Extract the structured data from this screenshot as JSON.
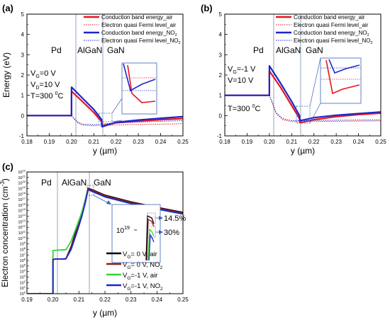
{
  "chart_data": [
    {
      "type": "line",
      "panel_label": "(a)",
      "ylabel": "Energy (eV)",
      "xlabel": "y (µm)",
      "xlim": [
        0.18,
        0.25
      ],
      "ylim": [
        -1,
        5
      ],
      "xticks": [
        0.18,
        0.19,
        0.2,
        0.21,
        0.22,
        0.23,
        0.24,
        0.25
      ],
      "xtick_labels": [
        "0.18",
        "0.19",
        "0.20",
        "0.21",
        "0.22",
        "0.23",
        "0.24",
        "0.25"
      ],
      "yticks": [
        -1,
        0,
        1,
        2,
        3,
        4,
        5
      ],
      "ytick_labels": [
        "-1",
        "0",
        "1",
        "2",
        "3",
        "4",
        "5"
      ],
      "region_labels": [
        "Pd",
        "AlGaN",
        "GaN"
      ],
      "conditions": [
        "V",
        "G",
        "=0 V",
        "V",
        "D",
        "=10 V",
        "T=300 ",
        "0",
        "C"
      ],
      "legend": [
        "Conduction band energy_air",
        "Electron quasi Fermi level_air",
        "Conduction band energy_NO",
        "2",
        "Electron quasi Fermi level_NO",
        "2"
      ],
      "series": [
        {
          "name": "Conduction band energy_air",
          "color": "#e8141e",
          "style": "solid",
          "x": [
            0.18,
            0.2,
            0.2,
            0.205,
            0.21,
            0.2135,
            0.2137,
            0.216,
            0.22,
            0.23,
            0.24,
            0.25
          ],
          "y": [
            0,
            0,
            1.2,
            0.68,
            0.15,
            -0.3,
            -0.5,
            -0.45,
            -0.35,
            -0.27,
            -0.2,
            -0.15
          ]
        },
        {
          "name": "Electron quasi Fermi level_air",
          "color": "#e8141e",
          "style": "dotted",
          "x": [
            0.18,
            0.2,
            0.201,
            0.203,
            0.205,
            0.21,
            0.215,
            0.22,
            0.23,
            0.24,
            0.25
          ],
          "y": [
            0,
            0,
            -0.15,
            -0.38,
            -0.47,
            -0.5,
            -0.48,
            -0.46,
            -0.44,
            -0.42,
            -0.4
          ]
        },
        {
          "name": "Conduction band energy_NO2",
          "color": "#1c27c8",
          "style": "solid",
          "x": [
            0.18,
            0.2,
            0.2,
            0.205,
            0.21,
            0.2135,
            0.2137,
            0.216,
            0.22,
            0.23,
            0.24,
            0.25
          ],
          "y": [
            0,
            0,
            1.4,
            0.85,
            0.3,
            -0.2,
            -0.55,
            -0.47,
            -0.33,
            -0.22,
            -0.13,
            -0.05
          ]
        },
        {
          "name": "Electron quasi Fermi level_NO2",
          "color": "#1c27c8",
          "style": "dotted",
          "x": [
            0.18,
            0.2,
            0.201,
            0.203,
            0.205,
            0.21,
            0.215,
            0.22,
            0.23,
            0.24,
            0.25
          ],
          "y": [
            0,
            0,
            -0.12,
            -0.33,
            -0.42,
            -0.45,
            -0.4,
            -0.36,
            -0.32,
            -0.28,
            -0.25
          ]
        }
      ]
    },
    {
      "type": "line",
      "panel_label": "(b)",
      "ylabel": "",
      "xlabel": "y (µm)",
      "xlim": [
        0.18,
        0.25
      ],
      "ylim": [
        -1,
        5
      ],
      "xticks": [
        0.18,
        0.19,
        0.2,
        0.21,
        0.22,
        0.23,
        0.24,
        0.25
      ],
      "xtick_labels": [
        "0.18",
        "0.19",
        "0.20",
        "0.21",
        "0.22",
        "0.23",
        "0.24",
        "0.25"
      ],
      "yticks": [
        -1,
        0,
        1,
        2,
        3,
        4,
        5
      ],
      "ytick_labels": [
        "-1",
        "0",
        "1",
        "2",
        "3",
        "4",
        "5"
      ],
      "region_labels": [
        "Pd",
        "AlGaN",
        "GaN"
      ],
      "conditions": [
        "V",
        "G",
        "=-1 V",
        "V=10 V",
        "T=300 ",
        "0",
        "C"
      ],
      "legend": [
        "Conduction band energy_air",
        "Electron quasi Fermi level_air",
        "Conduction band energy_NO",
        "2",
        "Electron quasi Fermi level_NO",
        "2"
      ],
      "series": [
        {
          "name": "Conduction band energy_air",
          "color": "#e8141e",
          "style": "solid",
          "x": [
            0.18,
            0.2,
            0.2,
            0.205,
            0.21,
            0.2135,
            0.2137,
            0.216,
            0.22,
            0.23,
            0.24,
            0.25
          ],
          "y": [
            1,
            1,
            2.2,
            1.4,
            0.5,
            -0.15,
            -0.35,
            -0.3,
            -0.2,
            -0.05,
            0.05,
            0.12
          ]
        },
        {
          "name": "Electron quasi Fermi level_air",
          "color": "#e8141e",
          "style": "dotted",
          "x": [
            0.18,
            0.2,
            0.201,
            0.203,
            0.206,
            0.21,
            0.215,
            0.22,
            0.23,
            0.24,
            0.25
          ],
          "y": [
            1,
            1,
            0.7,
            0.1,
            -0.2,
            -0.3,
            -0.3,
            -0.29,
            -0.28,
            -0.27,
            -0.26
          ]
        },
        {
          "name": "Conduction band energy_NO2",
          "color": "#1c27c8",
          "style": "solid",
          "x": [
            0.18,
            0.2,
            0.2,
            0.205,
            0.21,
            0.2135,
            0.2137,
            0.216,
            0.22,
            0.23,
            0.24,
            0.25
          ],
          "y": [
            1,
            1,
            2.45,
            1.6,
            0.7,
            0.0,
            -0.25,
            -0.2,
            -0.1,
            0.02,
            0.1,
            0.18
          ]
        },
        {
          "name": "Electron quasi Fermi level_NO2",
          "color": "#1c27c8",
          "style": "dotted",
          "x": [
            0.18,
            0.2,
            0.201,
            0.203,
            0.206,
            0.21,
            0.215,
            0.22,
            0.23,
            0.24,
            0.25
          ],
          "y": [
            1,
            1,
            0.75,
            0.15,
            -0.15,
            -0.25,
            -0.25,
            -0.24,
            -0.23,
            -0.22,
            -0.21
          ]
        }
      ]
    },
    {
      "type": "line",
      "panel_label": "(c)",
      "ylabel": "Electron concentration (cm",
      "ylabel_sup": "-3",
      "ylabel_end": ")",
      "xlabel": "y (µm)",
      "xlim": [
        0.19,
        0.25
      ],
      "ylim": [
        0,
        22
      ],
      "yscale": "log",
      "xticks": [
        0.19,
        0.2,
        0.21,
        0.22,
        0.23,
        0.24,
        0.25
      ],
      "xtick_labels": [
        "0.19",
        "0.20",
        "0.21",
        "0.22",
        "0.23",
        "0.24",
        "0.25"
      ],
      "ytick_base": "10",
      "ytick_exponents": [
        "0",
        "1",
        "2",
        "3",
        "4",
        "5",
        "6",
        "7",
        "8",
        "9",
        "10",
        "11",
        "12",
        "13",
        "14",
        "15",
        "16",
        "17",
        "18",
        "19",
        "20",
        "21",
        "22"
      ],
      "region_labels": [
        "Pd",
        "AlGaN",
        "GaN"
      ],
      "inset_tick_base": "10",
      "inset_tick_exp": "19",
      "annotations": [
        "14.5%",
        "30%"
      ],
      "legend_prefix": [
        "V",
        "G"
      ],
      "legend_suffix": [
        "= 0 V, air",
        "= 0 V, NO",
        "=-1 V, air",
        "=-1 V, NO"
      ],
      "legend_sub": [
        "",
        "2",
        "",
        "2"
      ],
      "series": [
        {
          "name": "VG= 0 V, air",
          "color": "#000000",
          "x": [
            0.19,
            0.2,
            0.2,
            0.201,
            0.203,
            0.205,
            0.207,
            0.209,
            0.211,
            0.2125,
            0.2135,
            0.215,
            0.22,
            0.23,
            0.24,
            0.25
          ],
          "y": [
            0,
            0,
            6.2,
            6.25,
            6.25,
            6.3,
            8.5,
            11.5,
            14.5,
            17.0,
            19.05,
            18.8,
            17.8,
            16.6,
            15.6,
            14.7
          ]
        },
        {
          "name": "VG= 0 V, NO2",
          "color": "#8b1a1a",
          "x": [
            0.19,
            0.2,
            0.2,
            0.201,
            0.203,
            0.205,
            0.207,
            0.209,
            0.211,
            0.2125,
            0.2135,
            0.215,
            0.22,
            0.23,
            0.24,
            0.25
          ],
          "y": [
            0,
            0,
            6.2,
            6.25,
            6.25,
            6.3,
            8.3,
            11.2,
            14.2,
            16.8,
            18.95,
            18.7,
            17.7,
            16.5,
            15.5,
            14.6
          ]
        },
        {
          "name": "VG=-1 V, air",
          "color": "#35d435",
          "x": [
            0.19,
            0.2,
            0.2,
            0.201,
            0.203,
            0.205,
            0.207,
            0.209,
            0.211,
            0.2125,
            0.2135,
            0.215,
            0.22,
            0.23,
            0.24,
            0.25
          ],
          "y": [
            0,
            0,
            7.8,
            7.85,
            7.9,
            7.95,
            9.5,
            12.0,
            14.6,
            16.8,
            18.8,
            18.5,
            17.5,
            16.3,
            15.3,
            14.4
          ]
        },
        {
          "name": "VG=-1 V, NO2",
          "color": "#1c27c8",
          "x": [
            0.19,
            0.2,
            0.2,
            0.201,
            0.203,
            0.205,
            0.207,
            0.209,
            0.211,
            0.2125,
            0.2135,
            0.215,
            0.22,
            0.23,
            0.24,
            0.25
          ],
          "y": [
            0,
            0,
            6.2,
            6.25,
            6.25,
            6.3,
            8.0,
            10.8,
            13.8,
            16.5,
            18.8,
            18.5,
            17.5,
            16.3,
            15.3,
            14.4
          ]
        }
      ]
    }
  ]
}
